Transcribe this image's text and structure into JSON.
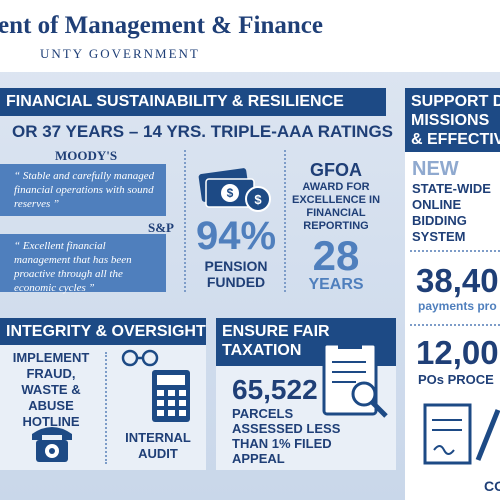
{
  "header": {
    "title": "ent of Management & Finance",
    "subtitle": "UNTY GOVERNMENT"
  },
  "sustainability": {
    "title": "FINANCIAL SUSTAINABILITY & RESILIENCE",
    "subtitle": "OR 37 YEARS – 14 YRS. TRIPLE-AAA RATINGS",
    "quotes": [
      {
        "source": "MOODY'S",
        "text": "“ Stable and carefully managed financial operations with sound reserves ”"
      },
      {
        "source": "S&P",
        "text": "“ Excellent financial management that has been proactive through all the economic cycles ”"
      }
    ],
    "pension": {
      "value": "94%",
      "label": "PENSION FUNDED"
    },
    "gfoa": {
      "title": "GFOA",
      "text": "AWARD FOR EXCELLENCE IN FINANCIAL REPORTING",
      "value": "28",
      "unit": "YEARS"
    }
  },
  "missions": {
    "title": [
      "SUPPORT D",
      "MISSIONS",
      "& EFFECTIV"
    ],
    "new": "NEW",
    "bidding": "STATE-WIDE ONLINE BIDDING SYSTEM",
    "payments": {
      "value": "38,40",
      "label": "payments pro"
    },
    "pos": {
      "value": "12,00",
      "label": "POs PROCE"
    },
    "contracts": "CO"
  },
  "integrity": {
    "title": "INTEGRITY & OVERSIGHT",
    "hotline": "IMPLEMENT FRAUD, WASTE & ABUSE HOTLINE",
    "audit": "INTERNAL AUDIT"
  },
  "taxation": {
    "title": "ENSURE FAIR TAXATION",
    "value": "65,522",
    "text": "PARCELS ASSESSED LESS THAN 1% FILED APPEAL"
  }
}
